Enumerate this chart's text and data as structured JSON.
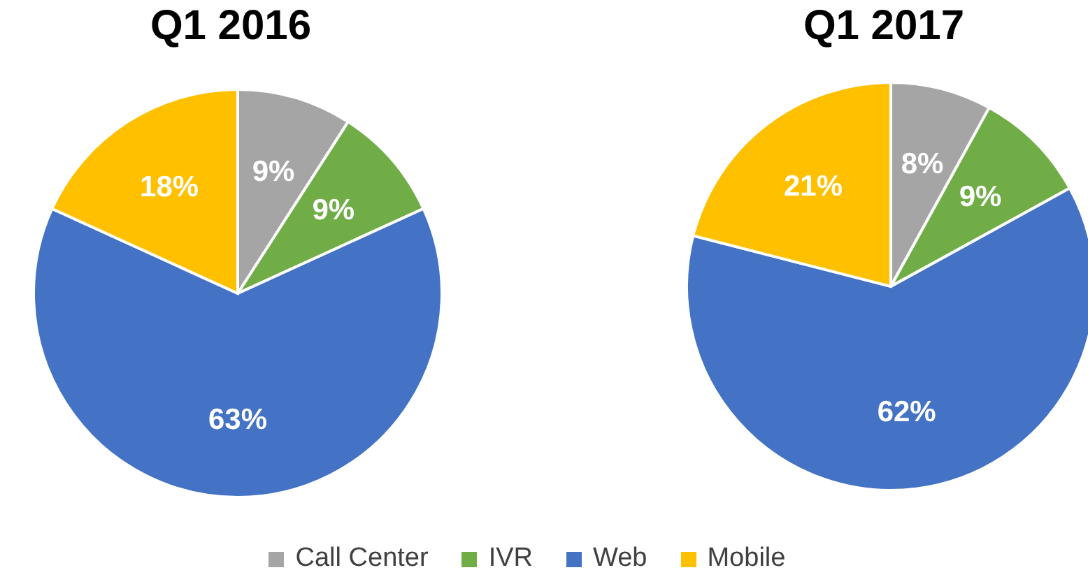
{
  "chart_data": [
    {
      "type": "pie",
      "title": "Q1 2016",
      "categories": [
        "Call Center",
        "IVR",
        "Web",
        "Mobile"
      ],
      "values": [
        9,
        9,
        63,
        18
      ],
      "value_labels": [
        "9%",
        "9%",
        "63%",
        "18%"
      ],
      "colors": [
        "#a5a5a5",
        "#70ad47",
        "#4472c4",
        "#ffc000"
      ],
      "legend": "bottom"
    },
    {
      "type": "pie",
      "title": "Q1 2017",
      "values": [
        8,
        9,
        62,
        21
      ],
      "value_labels": [
        "8%",
        "9%",
        "62%",
        "21%"
      ],
      "colors": [
        "#a5a5a5",
        "#70ad47",
        "#4472c4",
        "#ffc000"
      ]
    }
  ]
}
